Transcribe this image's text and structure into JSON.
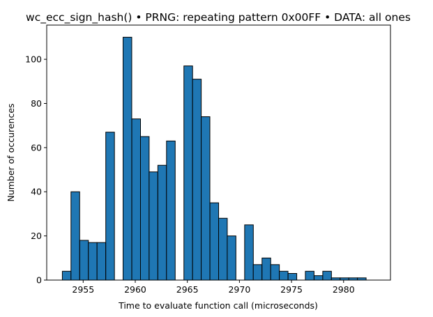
{
  "chart_data": {
    "type": "bar",
    "title": "wc_ecc_sign_hash() • PRNG: repeating pattern 0x00FF • DATA: all ones",
    "xlabel": "Time to evaluate function call (microseconds)",
    "ylabel": "Number of occurences",
    "xlim": [
      2951.5,
      2984.5
    ],
    "ylim": [
      0,
      115.5
    ],
    "xticks": [
      2955,
      2960,
      2965,
      2970,
      2975,
      2980
    ],
    "yticks": [
      0,
      20,
      40,
      60,
      80,
      100
    ],
    "bar_color": "#1f77b4",
    "edge_color": "#000000",
    "bin_width": 0.833,
    "x": [
      2953.0,
      2953.83,
      2954.67,
      2955.5,
      2956.33,
      2957.17,
      2958.0,
      2958.83,
      2959.67,
      2960.5,
      2961.33,
      2962.17,
      2963.0,
      2963.83,
      2964.67,
      2965.5,
      2966.33,
      2967.17,
      2968.0,
      2968.83,
      2969.67,
      2970.5,
      2971.33,
      2972.17,
      2973.0,
      2973.83,
      2974.67,
      2975.5,
      2976.33,
      2977.17,
      2978.0,
      2978.83,
      2979.67,
      2980.5,
      2981.33,
      2982.17
    ],
    "values": [
      4,
      40,
      18,
      17,
      17,
      67,
      0,
      110,
      73,
      65,
      49,
      52,
      63,
      0,
      97,
      91,
      74,
      35,
      28,
      20,
      0,
      25,
      7,
      10,
      7,
      4,
      3,
      0,
      4,
      2,
      4,
      1,
      1,
      1,
      1,
      0
    ]
  }
}
